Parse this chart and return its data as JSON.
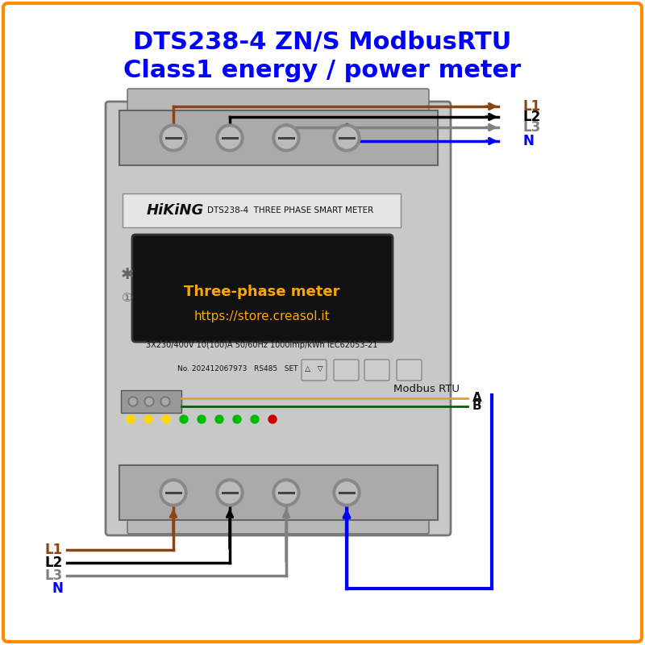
{
  "title_line1": "DTS238-4 ZN/S ModbusRTU",
  "title_line2": "Class1 energy / power meter",
  "title_color": "blue",
  "title_fontsize": 22,
  "border_color": "#FF8C00",
  "bg_color": "#FFFFFF",
  "wire_colors": {
    "L1": "#8B4513",
    "L2": "#000000",
    "L3": "#808080",
    "N": "#0000FF"
  },
  "modbus_A_color": "#DAA520",
  "modbus_B_color": "#006400",
  "meter_text1": "Three-phase meter",
  "meter_text2": "https://store.creasol.it",
  "meter_text_color": "#FFA500",
  "brand_text": "HiKiNG",
  "model_text": "DTS238-4  THREE PHASE SMART METER",
  "spec_text": "3X230/400V 10(100)A 50/60Hz 1000imp/kWh IEC62053-21",
  "modbus_label": "Modbus RTU",
  "modbus_A_label": "A",
  "modbus_B_label": "B"
}
